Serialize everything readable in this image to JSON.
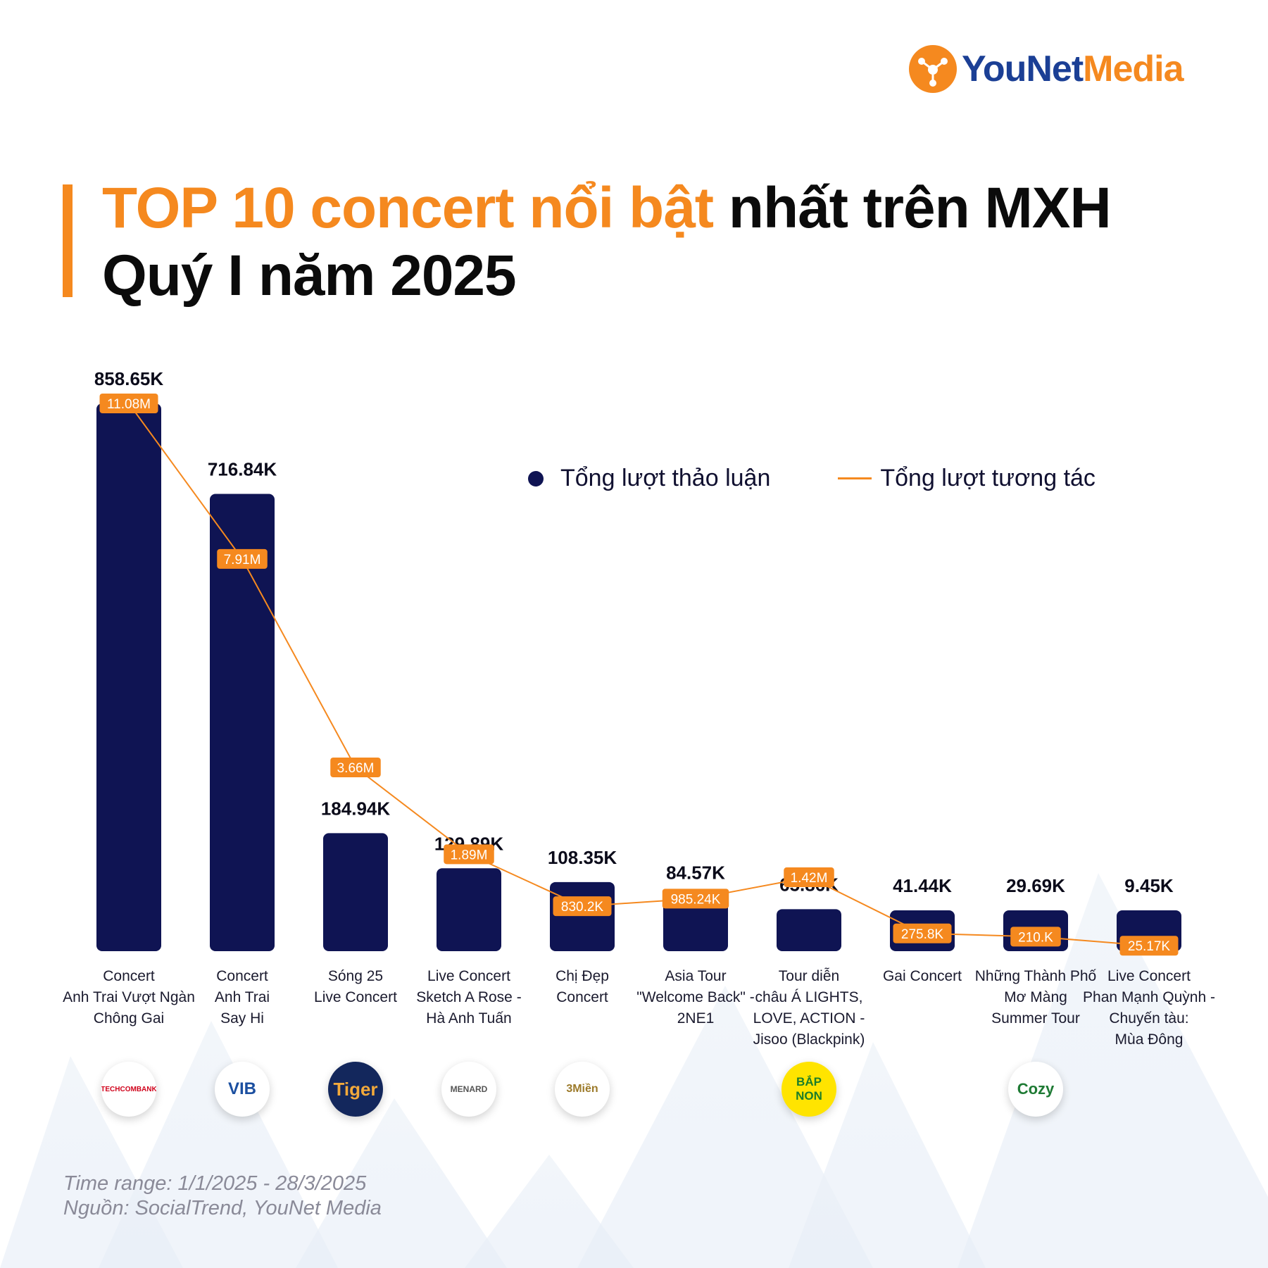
{
  "brand": {
    "you": "YouNet",
    "media": "Media"
  },
  "title": {
    "highlight": "TOP 10 concert nổi bật",
    "rest": " nhất trên MXH",
    "line2": "Quý I năm 2025"
  },
  "legend": {
    "bar": "Tổng lượt thảo luận",
    "line": "Tổng lượt tương tác"
  },
  "colors": {
    "bar": "#0f1453",
    "line": "#f5891f",
    "accent": "#f5891f"
  },
  "chart_data": {
    "type": "bar",
    "title": "TOP 10 concert nổi bật nhất trên MXH Quý I năm 2025",
    "categories": [
      "Concert\nAnh Trai Vượt Ngàn\nChông Gai",
      "Concert\nAnh Trai\nSay Hi",
      "Sóng 25\nLive Concert",
      "Live Concert\nSketch A Rose -\nHà Anh Tuấn",
      "Chị Đẹp\nConcert",
      "Asia Tour\n\"Welcome Back\" -\n2NE1",
      "Tour diễn\nchâu Á LIGHTS,\nLOVE, ACTION -\nJisoo (Blackpink)",
      "Gai Concert",
      "Những Thành Phố\nMơ Màng\nSummer Tour",
      "Live Concert\nPhan Mạnh Quỳnh -\nChuyến tàu:\nMùa Đông"
    ],
    "series": [
      {
        "name": "Tổng lượt thảo luận",
        "type": "bar",
        "values": [
          858650,
          716840,
          184940,
          129890,
          108350,
          84570,
          65860,
          41440,
          29690,
          9450
        ],
        "labels": [
          "858.65K",
          "716.84K",
          "184.94K",
          "129.89K",
          "108.35K",
          "84.57K",
          "65.86K",
          "41.44K",
          "29.69K",
          "9.45K"
        ]
      },
      {
        "name": "Tổng lượt tương tác",
        "type": "line",
        "values": [
          11080000,
          7910000,
          3660000,
          1890000,
          830200,
          985240,
          1420000,
          275800,
          210000,
          25170
        ],
        "labels": [
          "11.08M",
          "7.91M",
          "3.66M",
          "1.89M",
          "830.2K",
          "985.24K",
          "1.42M",
          "275.8K",
          "210.K",
          "25.17K"
        ]
      }
    ],
    "sponsors": [
      "TECHCOMBANK",
      "VIB",
      "Tiger",
      "MENARD",
      "3Miền",
      "",
      "BẮP NON",
      "",
      "Cozy",
      ""
    ],
    "bar_ylim": [
      0,
      858650
    ],
    "line_ylim": [
      0,
      11080000
    ],
    "xlabel": "",
    "ylabel": "",
    "grid": false
  },
  "footer": {
    "time_range": "Time range: 1/1/2025 - 28/3/2025",
    "source": "Nguồn: SocialTrend, YouNet Media"
  }
}
